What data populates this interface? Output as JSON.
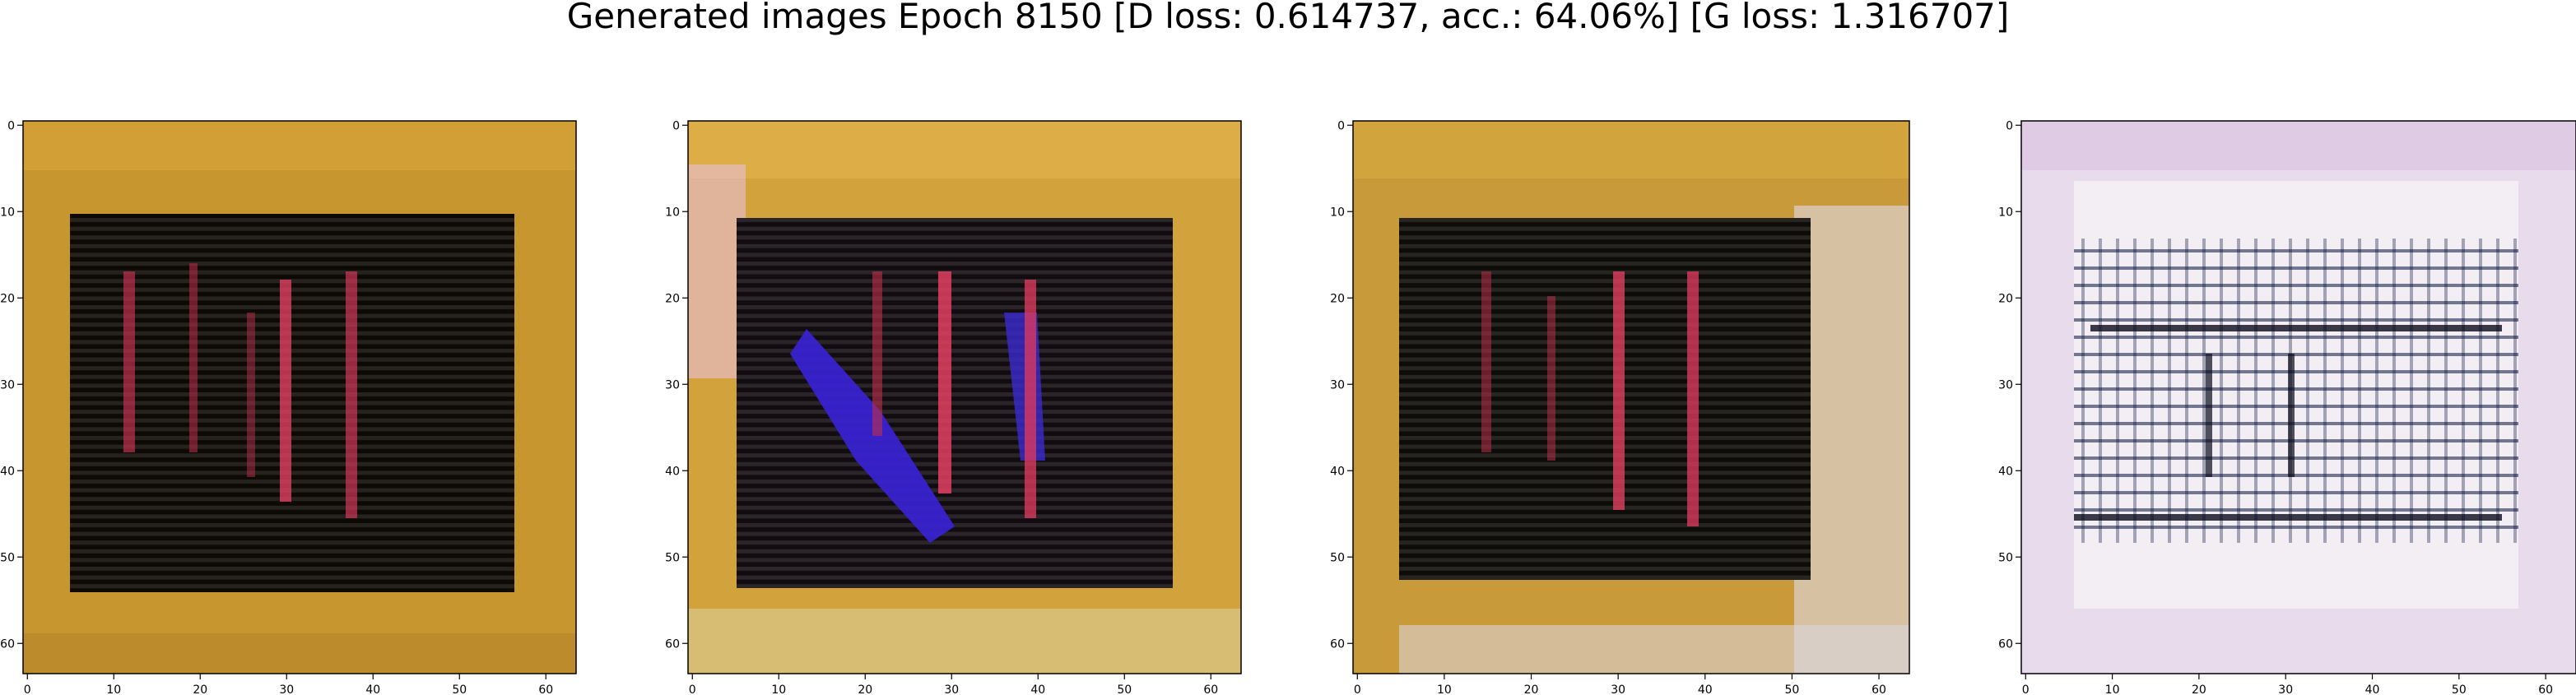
{
  "figure": {
    "title": "Generated images Epoch 8150 [D loss: 0.614737, acc.: 64.06%] [G loss: 1.316707]"
  },
  "axes": {
    "x_ticks": [
      "0",
      "10",
      "20",
      "30",
      "40",
      "50",
      "60"
    ],
    "y_ticks": [
      "0",
      "10",
      "20",
      "30",
      "40",
      "50",
      "60"
    ],
    "x_tick_values": [
      0,
      10,
      20,
      30,
      40,
      50,
      60
    ],
    "y_tick_values": [
      0,
      10,
      20,
      30,
      40,
      50,
      60
    ],
    "extent": [
      -0.5,
      63.5
    ]
  },
  "panels": [
    {
      "name": "generated-image-1",
      "style": "dark-center-gold-frame",
      "border": "#c8962e",
      "center": "#0d0a06"
    },
    {
      "name": "generated-image-2",
      "style": "dark-center-blue-streaks",
      "border": "#d2a23c",
      "center": "#120c10"
    },
    {
      "name": "generated-image-3",
      "style": "dark-center-gold-white-frame",
      "border": "#c89a3a",
      "center": "#0e0c08"
    },
    {
      "name": "generated-image-4",
      "style": "light-grid-pattern",
      "border": "#e8dcec",
      "center": "#f2eef4"
    }
  ]
}
